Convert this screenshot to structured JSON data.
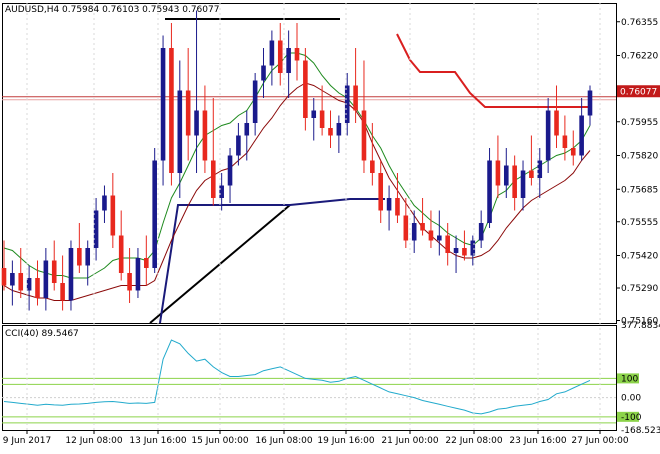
{
  "chart_data": {
    "type": "candlestick",
    "symbol": "AUDUSD,H4",
    "ohlc_text": "0.75984 0.76103 0.75943 0.76077",
    "price_label": "0.76077",
    "y_ticks": [
      "0.76355",
      "0.76220",
      "0.76077",
      "0.75955",
      "0.75820",
      "0.75685",
      "0.75555",
      "0.75420",
      "0.75290",
      "0.75160"
    ],
    "x_ticks": [
      "9 Jun 2017",
      "12 Jun 08:00",
      "13 Jun 16:00",
      "15 Jun 00:00",
      "16 Jun 08:00",
      "19 Jun 16:00",
      "21 Jun 00:00",
      "22 Jun 08:00",
      "23 Jun 16:00",
      "27 Jun 00:00"
    ],
    "ylim": [
      0.7515,
      0.7643
    ],
    "horizontal_line_price": 0.76055,
    "colors": {
      "bull": "#1a1a8c",
      "bear": "#e8281e",
      "fast_ma": "#1e8a1e",
      "slow_ma": "#8b0a0a",
      "cci": "#22aacc",
      "cci_level": "#8cd34a"
    },
    "candles": [
      {
        "o": 0.7537,
        "h": 0.7548,
        "l": 0.7528,
        "c": 0.753
      },
      {
        "o": 0.753,
        "h": 0.754,
        "l": 0.7522,
        "c": 0.7535
      },
      {
        "o": 0.7535,
        "h": 0.7545,
        "l": 0.7525,
        "c": 0.7528
      },
      {
        "o": 0.7528,
        "h": 0.7538,
        "l": 0.752,
        "c": 0.7533
      },
      {
        "o": 0.7533,
        "h": 0.754,
        "l": 0.7522,
        "c": 0.7525
      },
      {
        "o": 0.7525,
        "h": 0.7545,
        "l": 0.752,
        "c": 0.754
      },
      {
        "o": 0.754,
        "h": 0.7548,
        "l": 0.7528,
        "c": 0.7531
      },
      {
        "o": 0.7531,
        "h": 0.7542,
        "l": 0.752,
        "c": 0.7524
      },
      {
        "o": 0.7524,
        "h": 0.7548,
        "l": 0.752,
        "c": 0.7545
      },
      {
        "o": 0.7545,
        "h": 0.7555,
        "l": 0.7535,
        "c": 0.7538
      },
      {
        "o": 0.7538,
        "h": 0.7548,
        "l": 0.753,
        "c": 0.7545
      },
      {
        "o": 0.7545,
        "h": 0.7565,
        "l": 0.754,
        "c": 0.756
      },
      {
        "o": 0.756,
        "h": 0.757,
        "l": 0.7555,
        "c": 0.7566
      },
      {
        "o": 0.7566,
        "h": 0.7575,
        "l": 0.7545,
        "c": 0.755
      },
      {
        "o": 0.755,
        "h": 0.756,
        "l": 0.7532,
        "c": 0.7535
      },
      {
        "o": 0.7535,
        "h": 0.7545,
        "l": 0.7523,
        "c": 0.7528
      },
      {
        "o": 0.7528,
        "h": 0.7545,
        "l": 0.7525,
        "c": 0.7541
      },
      {
        "o": 0.7541,
        "h": 0.755,
        "l": 0.753,
        "c": 0.7537
      },
      {
        "o": 0.7537,
        "h": 0.7585,
        "l": 0.7535,
        "c": 0.758
      },
      {
        "o": 0.758,
        "h": 0.763,
        "l": 0.757,
        "c": 0.7625
      },
      {
        "o": 0.7625,
        "h": 0.7635,
        "l": 0.757,
        "c": 0.7575
      },
      {
        "o": 0.7575,
        "h": 0.762,
        "l": 0.7565,
        "c": 0.7608
      },
      {
        "o": 0.7608,
        "h": 0.7625,
        "l": 0.758,
        "c": 0.759
      },
      {
        "o": 0.759,
        "h": 0.764,
        "l": 0.7575,
        "c": 0.76
      },
      {
        "o": 0.76,
        "h": 0.761,
        "l": 0.7575,
        "c": 0.758
      },
      {
        "o": 0.758,
        "h": 0.7605,
        "l": 0.7562,
        "c": 0.7565
      },
      {
        "o": 0.7565,
        "h": 0.7575,
        "l": 0.756,
        "c": 0.757
      },
      {
        "o": 0.757,
        "h": 0.7585,
        "l": 0.7563,
        "c": 0.7582
      },
      {
        "o": 0.7582,
        "h": 0.7595,
        "l": 0.7578,
        "c": 0.759
      },
      {
        "o": 0.759,
        "h": 0.76,
        "l": 0.758,
        "c": 0.7595
      },
      {
        "o": 0.7595,
        "h": 0.7615,
        "l": 0.759,
        "c": 0.7612
      },
      {
        "o": 0.7612,
        "h": 0.7625,
        "l": 0.7605,
        "c": 0.7618
      },
      {
        "o": 0.7618,
        "h": 0.7632,
        "l": 0.761,
        "c": 0.7628
      },
      {
        "o": 0.7628,
        "h": 0.7635,
        "l": 0.761,
        "c": 0.7615
      },
      {
        "o": 0.7615,
        "h": 0.7632,
        "l": 0.7605,
        "c": 0.7625
      },
      {
        "o": 0.7625,
        "h": 0.7635,
        "l": 0.7612,
        "c": 0.762
      },
      {
        "o": 0.762,
        "h": 0.7625,
        "l": 0.7592,
        "c": 0.7597
      },
      {
        "o": 0.7597,
        "h": 0.7605,
        "l": 0.7588,
        "c": 0.76
      },
      {
        "o": 0.76,
        "h": 0.761,
        "l": 0.759,
        "c": 0.7593
      },
      {
        "o": 0.7593,
        "h": 0.76,
        "l": 0.7585,
        "c": 0.759
      },
      {
        "o": 0.759,
        "h": 0.7598,
        "l": 0.7583,
        "c": 0.7595
      },
      {
        "o": 0.7595,
        "h": 0.7615,
        "l": 0.759,
        "c": 0.761
      },
      {
        "o": 0.761,
        "h": 0.7625,
        "l": 0.7595,
        "c": 0.76
      },
      {
        "o": 0.76,
        "h": 0.762,
        "l": 0.7575,
        "c": 0.758
      },
      {
        "o": 0.758,
        "h": 0.7595,
        "l": 0.757,
        "c": 0.7575
      },
      {
        "o": 0.7575,
        "h": 0.758,
        "l": 0.7555,
        "c": 0.756
      },
      {
        "o": 0.756,
        "h": 0.757,
        "l": 0.7552,
        "c": 0.7565
      },
      {
        "o": 0.7565,
        "h": 0.7575,
        "l": 0.7555,
        "c": 0.7558
      },
      {
        "o": 0.7558,
        "h": 0.7565,
        "l": 0.7545,
        "c": 0.7548
      },
      {
        "o": 0.7548,
        "h": 0.756,
        "l": 0.7543,
        "c": 0.7555
      },
      {
        "o": 0.7555,
        "h": 0.7565,
        "l": 0.755,
        "c": 0.7552
      },
      {
        "o": 0.7552,
        "h": 0.756,
        "l": 0.7545,
        "c": 0.7548
      },
      {
        "o": 0.7548,
        "h": 0.756,
        "l": 0.7542,
        "c": 0.755
      },
      {
        "o": 0.755,
        "h": 0.7555,
        "l": 0.7538,
        "c": 0.7543
      },
      {
        "o": 0.7543,
        "h": 0.755,
        "l": 0.7535,
        "c": 0.7545
      },
      {
        "o": 0.7545,
        "h": 0.7552,
        "l": 0.754,
        "c": 0.7542
      },
      {
        "o": 0.7542,
        "h": 0.755,
        "l": 0.7538,
        "c": 0.7548
      },
      {
        "o": 0.7548,
        "h": 0.756,
        "l": 0.7545,
        "c": 0.7555
      },
      {
        "o": 0.7555,
        "h": 0.7585,
        "l": 0.7553,
        "c": 0.758
      },
      {
        "o": 0.758,
        "h": 0.759,
        "l": 0.7565,
        "c": 0.757
      },
      {
        "o": 0.757,
        "h": 0.7585,
        "l": 0.7565,
        "c": 0.7578
      },
      {
        "o": 0.7578,
        "h": 0.7582,
        "l": 0.756,
        "c": 0.7565
      },
      {
        "o": 0.7565,
        "h": 0.758,
        "l": 0.756,
        "c": 0.7576
      },
      {
        "o": 0.7576,
        "h": 0.759,
        "l": 0.757,
        "c": 0.7573
      },
      {
        "o": 0.7573,
        "h": 0.7585,
        "l": 0.7565,
        "c": 0.758
      },
      {
        "o": 0.758,
        "h": 0.7605,
        "l": 0.7575,
        "c": 0.76
      },
      {
        "o": 0.76,
        "h": 0.761,
        "l": 0.7585,
        "c": 0.759
      },
      {
        "o": 0.759,
        "h": 0.7598,
        "l": 0.758,
        "c": 0.7585
      },
      {
        "o": 0.7585,
        "h": 0.7592,
        "l": 0.7578,
        "c": 0.7582
      },
      {
        "o": 0.7582,
        "h": 0.7605,
        "l": 0.758,
        "c": 0.7598
      },
      {
        "o": 0.7598,
        "h": 0.761,
        "l": 0.7594,
        "c": 0.7608
      }
    ],
    "fast_ma": [
      0.7545,
      0.7544,
      0.7541,
      0.7538,
      0.7536,
      0.7535,
      0.7534,
      0.7534,
      0.7533,
      0.7533,
      0.7533,
      0.7535,
      0.7537,
      0.754,
      0.7541,
      0.7541,
      0.7541,
      0.754,
      0.7544,
      0.7555,
      0.7565,
      0.7571,
      0.7578,
      0.7585,
      0.759,
      0.7592,
      0.7594,
      0.7595,
      0.7598,
      0.76,
      0.7605,
      0.7611,
      0.7616,
      0.7619,
      0.7623,
      0.7623,
      0.7622,
      0.7619,
      0.7614,
      0.761,
      0.7607,
      0.7605,
      0.7601,
      0.7596,
      0.759,
      0.7585,
      0.7578,
      0.7572,
      0.7567,
      0.7562,
      0.7559,
      0.7556,
      0.7554,
      0.7551,
      0.7549,
      0.7547,
      0.7546,
      0.7549,
      0.7557,
      0.7566,
      0.7568,
      0.7572,
      0.7574,
      0.7576,
      0.7578,
      0.758,
      0.7582,
      0.7583,
      0.7585,
      0.7588,
      0.7594
    ],
    "slow_ma": [
      0.753,
      0.7528,
      0.7527,
      0.7526,
      0.7525,
      0.7525,
      0.7524,
      0.7524,
      0.7524,
      0.7525,
      0.7526,
      0.7527,
      0.7528,
      0.7529,
      0.753,
      0.753,
      0.753,
      0.753,
      0.7532,
      0.754,
      0.7548,
      0.7555,
      0.7562,
      0.7568,
      0.7572,
      0.7574,
      0.7576,
      0.7577,
      0.758,
      0.7583,
      0.7588,
      0.7593,
      0.7597,
      0.7602,
      0.7606,
      0.7609,
      0.7611,
      0.761,
      0.7608,
      0.7606,
      0.7604,
      0.7603,
      0.76,
      0.7595,
      0.7587,
      0.758,
      0.7573,
      0.7568,
      0.7563,
      0.7558,
      0.7553,
      0.755,
      0.7547,
      0.7544,
      0.7542,
      0.7541,
      0.7541,
      0.7542,
      0.7544,
      0.7548,
      0.7553,
      0.7557,
      0.7561,
      0.7564,
      0.7566,
      0.7568,
      0.757,
      0.7572,
      0.7575,
      0.758,
      0.7584
    ],
    "cci": {
      "label": "CCI(40) 89.5467",
      "ticks": [
        "377.8834",
        "100",
        "0.00",
        "-100",
        "-168.5233"
      ],
      "ylim": [
        -168.5233,
        377.8834
      ],
      "levels": [
        100,
        -100
      ],
      "values": [
        -20,
        -25,
        -30,
        -35,
        -40,
        -35,
        -38,
        -40,
        -35,
        -33,
        -30,
        -25,
        -22,
        -20,
        -25,
        -30,
        -28,
        -30,
        -25,
        200,
        300,
        280,
        230,
        190,
        200,
        160,
        130,
        110,
        110,
        115,
        120,
        140,
        150,
        160,
        140,
        120,
        100,
        95,
        90,
        80,
        85,
        100,
        110,
        90,
        70,
        50,
        30,
        20,
        10,
        0,
        -15,
        -25,
        -35,
        -45,
        -55,
        -65,
        -80,
        -85,
        -75,
        -60,
        -55,
        -45,
        -40,
        -35,
        -20,
        -10,
        20,
        30,
        50,
        70,
        89.5
      ]
    }
  }
}
